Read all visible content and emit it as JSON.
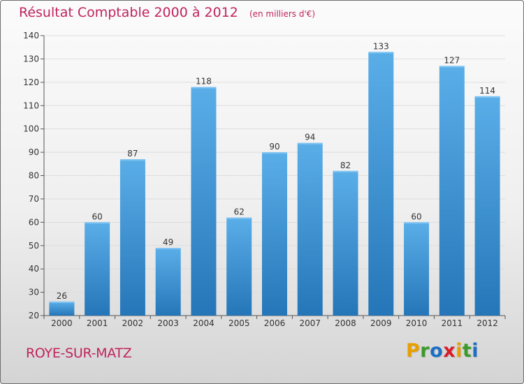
{
  "header": {
    "title": "Résultat Comptable 2000 à 2012",
    "unit": "(en milliers d'€)"
  },
  "footer": {
    "commune": "ROYE-SUR-MATZ",
    "brand": [
      "P",
      "r",
      "o",
      "x",
      "i",
      "t",
      "i"
    ],
    "brand_colors": [
      "#e8a000",
      "#3a9a2c",
      "#1c6fc4",
      "#d81c2a",
      "#e8a000",
      "#3a9a2c",
      "#1c6fc4"
    ]
  },
  "colors": {
    "bar_top": "#5aaee8",
    "bar_bottom": "#2576b8",
    "title": "#c0245c"
  },
  "chart_data": {
    "type": "bar",
    "title": "Résultat Comptable 2000 à 2012",
    "xlabel": "",
    "ylabel": "",
    "categories": [
      "2000",
      "2001",
      "2002",
      "2003",
      "2004",
      "2005",
      "2006",
      "2007",
      "2008",
      "2009",
      "2010",
      "2011",
      "2012"
    ],
    "values": [
      26,
      60,
      87,
      49,
      118,
      62,
      90,
      94,
      82,
      133,
      60,
      127,
      114
    ],
    "ylim": [
      20,
      140
    ],
    "yticks": [
      20,
      30,
      40,
      50,
      60,
      70,
      80,
      90,
      100,
      110,
      120,
      130,
      140
    ],
    "grid": true
  }
}
